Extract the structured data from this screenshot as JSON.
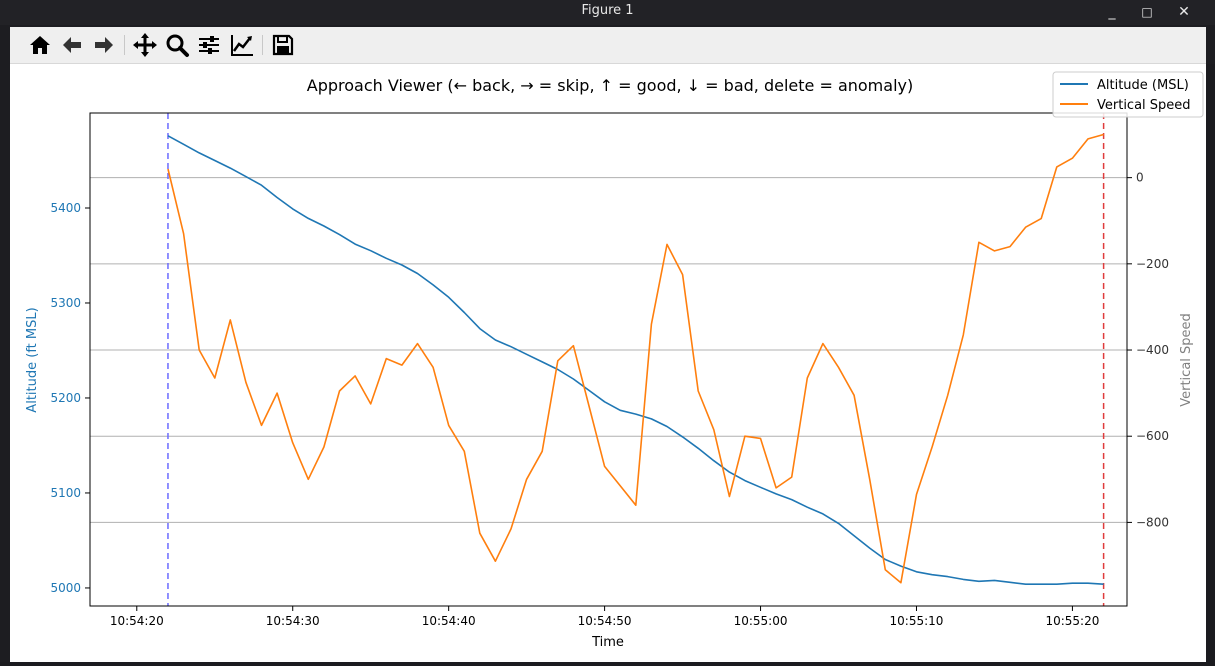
{
  "window": {
    "title": "Figure 1",
    "buttons": {
      "minimize": "_",
      "maximize": "□",
      "close": "✕"
    }
  },
  "toolbar": {
    "items": [
      {
        "name": "home-button",
        "icon": "home-icon"
      },
      {
        "name": "back-button",
        "icon": "arrow-left-icon"
      },
      {
        "name": "forward-button",
        "icon": "arrow-right-icon"
      },
      {
        "name": "pan-button",
        "icon": "move-icon"
      },
      {
        "name": "zoom-button",
        "icon": "search-icon"
      },
      {
        "name": "subplots-button",
        "icon": "sliders-icon"
      },
      {
        "name": "edit-axes-button",
        "icon": "chart-edit-icon"
      },
      {
        "name": "save-button",
        "icon": "save-icon"
      }
    ]
  },
  "chart_data": {
    "type": "line",
    "title": "Approach Viewer (← back, → = skip, ↑ = good, ↓ = bad, delete = anomaly)",
    "xlabel": "Time",
    "ylabel_left": "Altitude (ft MSL)",
    "ylabel_right": "Vertical Speed",
    "x_ticks": [
      "10:54:20",
      "10:54:30",
      "10:54:40",
      "10:54:50",
      "10:55:00",
      "10:55:10",
      "10:55:20"
    ],
    "x_tick_seconds": [
      20,
      30,
      40,
      50,
      60,
      70,
      80
    ],
    "xlim": [
      17,
      83.5
    ],
    "y_left_ticks": [
      5000,
      5100,
      5200,
      5300,
      5400
    ],
    "y_left_lim": [
      4981,
      5500
    ],
    "y_right_ticks": [
      0,
      -200,
      -400,
      -600,
      -800
    ],
    "y_right_tick_labels": [
      "0",
      "−200",
      "−400",
      "−600",
      "−800"
    ],
    "y_right_lim": [
      -994,
      150
    ],
    "grid": "right-axis horizontal",
    "legend_position": "top-right",
    "vlines": [
      {
        "x_seconds": 22,
        "color": "#6b6bff",
        "style": "dashed"
      },
      {
        "x_seconds": 82,
        "color": "#e03c3c",
        "style": "dashed"
      }
    ],
    "series": [
      {
        "name": "Altitude (MSL)",
        "axis": "left",
        "color": "#1f77b4",
        "x_seconds": [
          22,
          23,
          24,
          25,
          26,
          27,
          28,
          29,
          30,
          31,
          32,
          33,
          34,
          35,
          36,
          37,
          38,
          39,
          40,
          41,
          42,
          43,
          44,
          45,
          46,
          47,
          48,
          49,
          50,
          51,
          52,
          53,
          54,
          55,
          56,
          57,
          58,
          59,
          60,
          61,
          62,
          63,
          64,
          65,
          66,
          67,
          68,
          69,
          70,
          71,
          72,
          73,
          74,
          75,
          76,
          77,
          78,
          79,
          80,
          81,
          82
        ],
        "values": [
          5476,
          5467,
          5458,
          5450,
          5442,
          5433,
          5424,
          5411,
          5399,
          5389,
          5381,
          5372,
          5362,
          5355,
          5347,
          5340,
          5331,
          5319,
          5306,
          5290,
          5273,
          5261,
          5254,
          5246,
          5238,
          5230,
          5220,
          5208,
          5196,
          5187,
          5183,
          5178,
          5170,
          5159,
          5147,
          5134,
          5122,
          5113,
          5106,
          5099,
          5093,
          5085,
          5078,
          5068,
          5055,
          5042,
          5030,
          5023,
          5017,
          5014,
          5012,
          5009,
          5007,
          5008,
          5006,
          5004,
          5004,
          5004,
          5005,
          5005,
          5004
        ]
      },
      {
        "name": "Vertical Speed",
        "axis": "right",
        "color": "#ff7f0e",
        "x_seconds": [
          22,
          23,
          24,
          25,
          26,
          27,
          28,
          29,
          30,
          31,
          32,
          33,
          34,
          35,
          36,
          37,
          38,
          39,
          40,
          41,
          42,
          43,
          44,
          45,
          46,
          47,
          48,
          49,
          50,
          51,
          52,
          53,
          54,
          55,
          56,
          57,
          58,
          59,
          60,
          61,
          62,
          63,
          64,
          65,
          66,
          67,
          68,
          69,
          70,
          71,
          72,
          73,
          74,
          75,
          76,
          77,
          78,
          79,
          80,
          81,
          82
        ],
        "values": [
          20,
          -130,
          -400,
          -465,
          -330,
          -475,
          -575,
          -500,
          -615,
          -700,
          -625,
          -495,
          -460,
          -525,
          -420,
          -435,
          -385,
          -440,
          -575,
          -635,
          -825,
          -890,
          -815,
          -700,
          -635,
          -425,
          -390,
          -530,
          -670,
          -715,
          -760,
          -340,
          -155,
          -225,
          -495,
          -585,
          -740,
          -600,
          -605,
          -720,
          -695,
          -465,
          -385,
          -440,
          -505,
          -700,
          -910,
          -940,
          -735,
          -625,
          -505,
          -365,
          -150,
          -170,
          -160,
          -115,
          -95,
          25,
          45,
          90,
          100
        ]
      }
    ]
  }
}
